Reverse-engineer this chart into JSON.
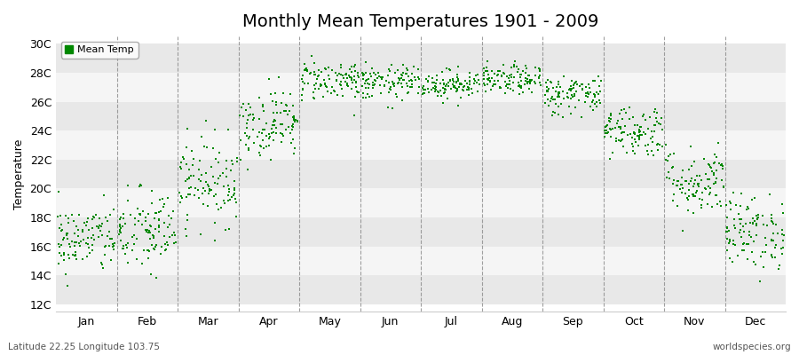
{
  "title": "Monthly Mean Temperatures 1901 - 2009",
  "ylabel": "Temperature",
  "xlabel_labels": [
    "Jan",
    "Feb",
    "Mar",
    "Apr",
    "May",
    "Jun",
    "Jul",
    "Aug",
    "Sep",
    "Oct",
    "Nov",
    "Dec"
  ],
  "ytick_labels": [
    "12C",
    "14C",
    "16C",
    "18C",
    "20C",
    "22C",
    "24C",
    "26C",
    "28C",
    "30C"
  ],
  "ytick_values": [
    12,
    14,
    16,
    18,
    20,
    22,
    24,
    26,
    28,
    30
  ],
  "ylim": [
    11.5,
    30.5
  ],
  "dot_color": "#008800",
  "bg_color": "#ffffff",
  "band_colors": [
    "#e8e8e8",
    "#f5f5f5"
  ],
  "vline_color": "#888888",
  "legend_label": "Mean Temp",
  "footer_left": "Latitude 22.25 Longitude 103.75",
  "footer_right": "worldspecies.org",
  "num_years": 109,
  "monthly_means": [
    16.5,
    17.0,
    20.5,
    24.5,
    27.5,
    27.3,
    27.2,
    27.5,
    26.5,
    24.0,
    20.5,
    17.0
  ],
  "monthly_stds": [
    1.2,
    1.5,
    1.5,
    1.2,
    0.7,
    0.6,
    0.5,
    0.5,
    0.7,
    0.9,
    1.2,
    1.3
  ],
  "title_fontsize": 14,
  "axis_label_fontsize": 9,
  "ylabel_fontsize": 9,
  "footer_fontsize": 7.5
}
